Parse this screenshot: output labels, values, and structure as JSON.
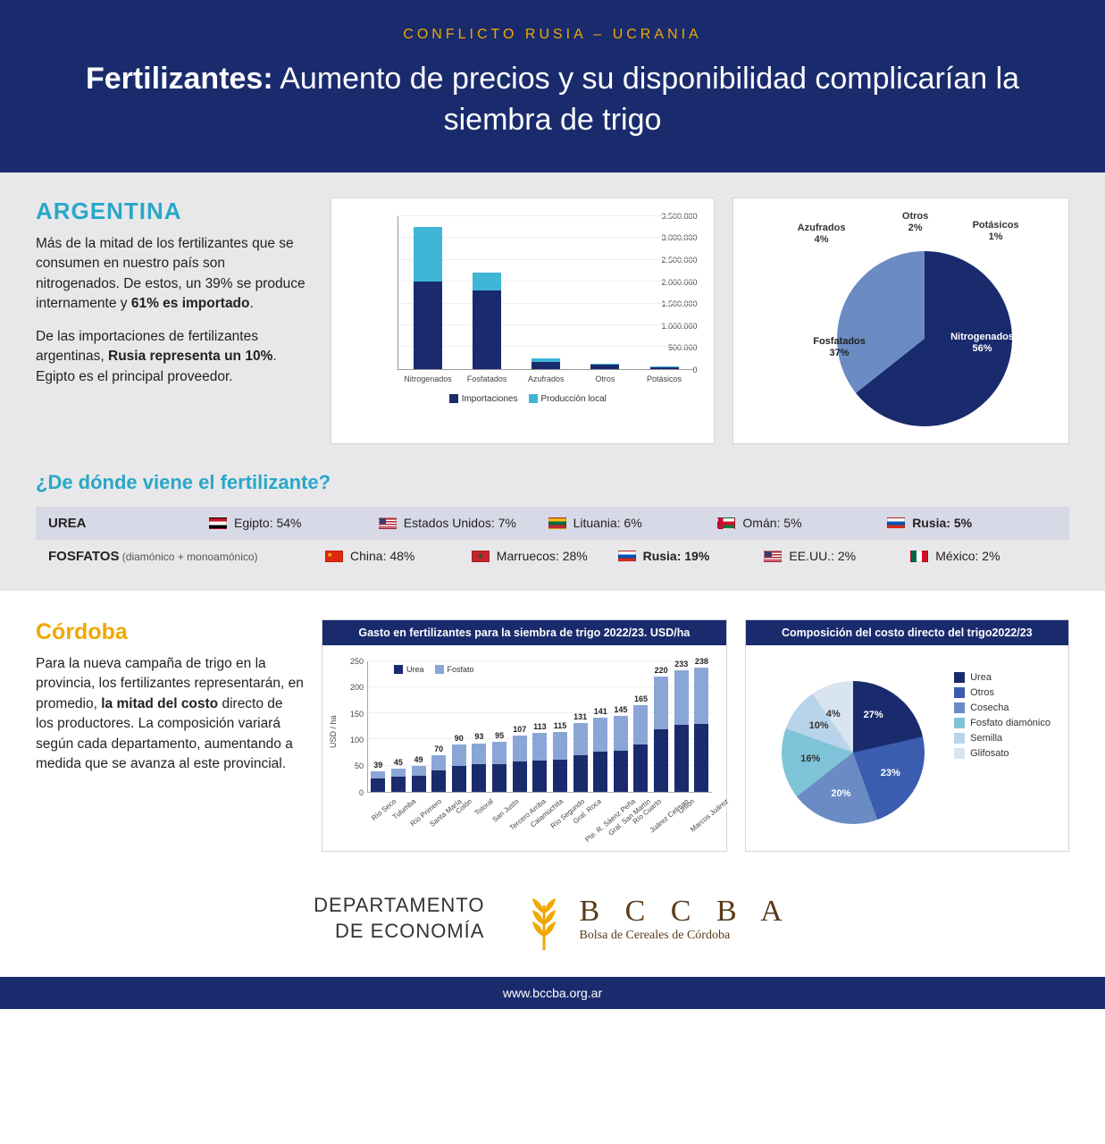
{
  "header": {
    "eyebrow": "CONFLICTO RUSIA – UCRANIA",
    "title_bold": "Fertilizantes:",
    "title_rest": " Aumento de precios y su disponibilidad complicarían la siembra de trigo"
  },
  "argentina": {
    "heading": "ARGENTINA",
    "p1_a": "Más de la mitad de los fertilizantes que se consumen en nuestro país son nitrogenados. De estos, un 39% se produce internamente y ",
    "p1_b": "61% es importado",
    "p1_c": ".",
    "p2_a": "De las importaciones de fertilizantes argentinas, ",
    "p2_b": "Rusia representa un 10%",
    "p2_c": ". Egipto es el principal proveedor."
  },
  "bar_chart": {
    "y_max": 3500000,
    "y_ticks": [
      0,
      500000,
      1000000,
      1500000,
      2000000,
      2500000,
      3000000,
      3500000
    ],
    "y_tick_labels": [
      "0",
      "500.000",
      "1.000.000",
      "1.500.000",
      "2.000.000",
      "2.500.000",
      "3.000.000",
      "3.500.000"
    ],
    "categories": [
      "Nitrogenados",
      "Fosfatados",
      "Azufrados",
      "Otros",
      "Potásicos"
    ],
    "imports": [
      2000000,
      1800000,
      150000,
      90000,
      40000
    ],
    "local": [
      1250000,
      400000,
      100000,
      20000,
      10000
    ],
    "color_import": "#1a2b6d",
    "color_local": "#3fb6d6",
    "legend_import": "Importaciones",
    "legend_local": "Producción local"
  },
  "pie_chart": {
    "slices": [
      {
        "label": "Nitrogenados",
        "pct": 56,
        "color": "#1a2b6d"
      },
      {
        "label": "Fosfatados",
        "pct": 37,
        "color": "#6b8bc4"
      },
      {
        "label": "Azufrados",
        "pct": 4,
        "color": "#9db4da"
      },
      {
        "label": "Otros",
        "pct": 2,
        "color": "#c2d0e8"
      },
      {
        "label": "Potásicos",
        "pct": 1,
        "color": "#3fb6d6"
      }
    ]
  },
  "origin": {
    "heading": "¿De dónde viene el fertilizante?",
    "rows": [
      {
        "type": "UREA",
        "sub": "",
        "countries": [
          {
            "name": "Egipto",
            "pct": "54%",
            "flag": "eg",
            "bold": false
          },
          {
            "name": "Estados Unidos",
            "pct": "7%",
            "flag": "us",
            "bold": false
          },
          {
            "name": "Lituania",
            "pct": "6%",
            "flag": "lt",
            "bold": false
          },
          {
            "name": "Omán",
            "pct": "5%",
            "flag": "om",
            "bold": false
          },
          {
            "name": "Rusia",
            "pct": "5%",
            "flag": "ru",
            "bold": true
          }
        ]
      },
      {
        "type": "FOSFATOS",
        "sub": " (diamónico + monoamónico)",
        "countries": [
          {
            "name": "China",
            "pct": "48%",
            "flag": "cn",
            "bold": false
          },
          {
            "name": "Marruecos",
            "pct": "28%",
            "flag": "ma",
            "bold": false
          },
          {
            "name": "Rusia",
            "pct": "19%",
            "flag": "ru",
            "bold": true
          },
          {
            "name": "EE.UU.",
            "pct": "2%",
            "flag": "us",
            "bold": false
          },
          {
            "name": "México",
            "pct": "2%",
            "flag": "mx",
            "bold": false
          }
        ]
      }
    ]
  },
  "cordoba": {
    "heading": "Córdoba",
    "p_a": "Para la nueva campaña de trigo en la provincia, los fertilizantes representarán, en promedio, ",
    "p_b": "la mitad del costo",
    "p_c": " directo de los productores. La composición variará según cada departamento, aumentando a medida que se avanza al este provincial."
  },
  "cba_bar": {
    "title": "Gasto en fertilizantes para la siembra de trigo 2022/23. USD/ha",
    "y_label": "USD / ha",
    "y_max": 250,
    "y_ticks": [
      0,
      50,
      100,
      150,
      200,
      250
    ],
    "legend_urea": "Urea",
    "legend_fosf": "Fosfato",
    "color_urea": "#1a2b6d",
    "color_fosf": "#8aa6d6",
    "depts": [
      {
        "name": "Río Seco",
        "urea": 25,
        "fosf": 14,
        "total": 39
      },
      {
        "name": "Tulumba",
        "urea": 28,
        "fosf": 17,
        "total": 45
      },
      {
        "name": "Río Primero",
        "urea": 30,
        "fosf": 19,
        "total": 49
      },
      {
        "name": "Santa María",
        "urea": 40,
        "fosf": 30,
        "total": 70
      },
      {
        "name": "Colón",
        "urea": 50,
        "fosf": 40,
        "total": 90
      },
      {
        "name": "Totoral",
        "urea": 52,
        "fosf": 41,
        "total": 93
      },
      {
        "name": "San Justo",
        "urea": 53,
        "fosf": 42,
        "total": 95
      },
      {
        "name": "Tercero Arriba",
        "urea": 58,
        "fosf": 49,
        "total": 107
      },
      {
        "name": "Calamuchita",
        "urea": 60,
        "fosf": 53,
        "total": 113
      },
      {
        "name": "Río Segundo",
        "urea": 62,
        "fosf": 53,
        "total": 115
      },
      {
        "name": "Gral. Roca",
        "urea": 70,
        "fosf": 61,
        "total": 131
      },
      {
        "name": "Pte. R. Sáenz Peña",
        "urea": 76,
        "fosf": 65,
        "total": 141
      },
      {
        "name": "Gral. San Martín",
        "urea": 78,
        "fosf": 67,
        "total": 145
      },
      {
        "name": "Río Cuarto",
        "urea": 90,
        "fosf": 75,
        "total": 165
      },
      {
        "name": "Juárez Celman",
        "urea": 120,
        "fosf": 100,
        "total": 220
      },
      {
        "name": "Unión",
        "urea": 128,
        "fosf": 105,
        "total": 233
      },
      {
        "name": "Marcos Juárez",
        "urea": 130,
        "fosf": 108,
        "total": 238
      }
    ]
  },
  "cba_pie": {
    "title": "Composición del costo directo del trigo2022/23",
    "slices": [
      {
        "label": "Urea",
        "pct": 27,
        "color": "#1a2b6d"
      },
      {
        "label": "Otros",
        "pct": 23,
        "color": "#3a5db0"
      },
      {
        "label": "Cosecha",
        "pct": 20,
        "color": "#6b8bc4"
      },
      {
        "label": "Fosfato diamónico",
        "pct": 16,
        "color": "#7fc3d8"
      },
      {
        "label": "Semilla",
        "pct": 10,
        "color": "#b8d4ea"
      },
      {
        "label": "Glifosato",
        "pct": 4,
        "color": "#d8e4f0"
      }
    ]
  },
  "footer": {
    "dept_line1": "DEPARTAMENTO",
    "dept_line2": "DE ECONOMÍA",
    "bccba": "B C C B A",
    "bccba_sub": "Bolsa de Cereales de Córdoba",
    "url": "www.bccba.org.ar"
  },
  "flags": {
    "eg": "linear-gradient(#ce1126 33%, #fff 33% 66%, #000 66%)",
    "us": "repeating-linear-gradient(#b22234 0 1.5px, #fff 1.5px 3px)",
    "lt": "linear-gradient(#fdb913 33%, #006a44 33% 66%, #c1272d 66%)",
    "om": "linear-gradient(90deg, #c8102e 30%, transparent 30%), linear-gradient(#fff 33%, #c8102e 33% 66%, #007a3d 66%)",
    "ru": "linear-gradient(#fff 33%, #0052b4 33% 66%, #d52b1e 66%)",
    "cn": "#de2910",
    "ma": "#c1272d",
    "mx": "linear-gradient(90deg, #006847 33%, #fff 33% 66%, #ce1126 66%)"
  }
}
